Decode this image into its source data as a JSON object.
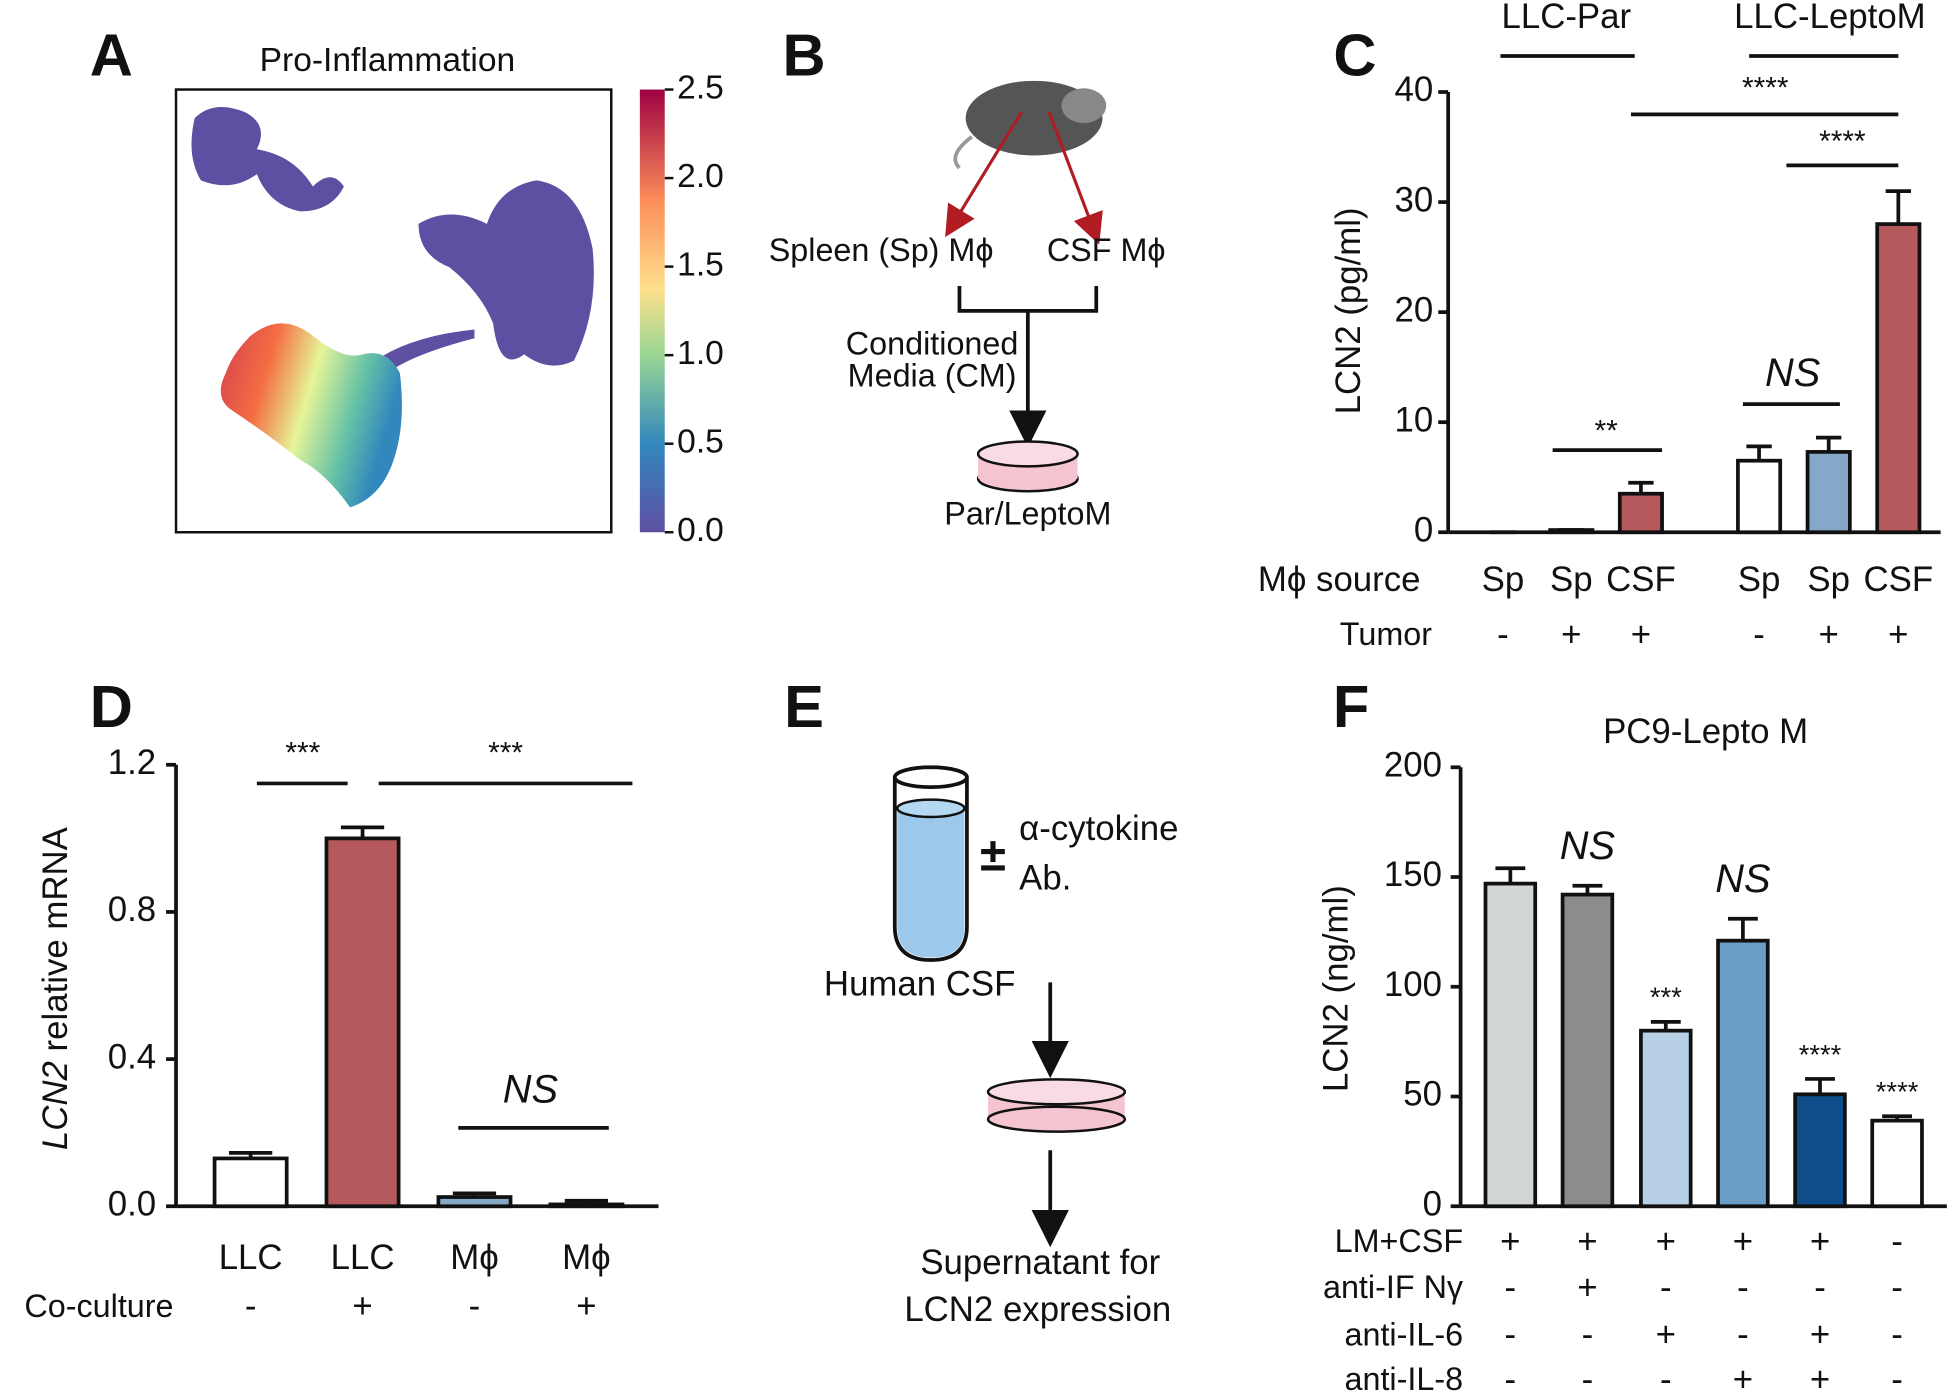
{
  "panel_labels": [
    "A",
    "B",
    "C",
    "D",
    "E",
    "F"
  ],
  "panel_a": {
    "title": "Pro-Inflammation",
    "colorbar_lim": [
      0,
      2.5
    ],
    "colorbar_ticks": [
      {
        "value": 0,
        "label": "0.0"
      },
      0.5,
      {
        "value": 1,
        "label": "1.0"
      },
      1.5,
      {
        "value": 2,
        "label": "2.0"
      },
      2.5
    ]
  },
  "panel_b": {
    "spleen": "Spleen (Sp) Mϕ",
    "csf": "CSF Mϕ",
    "cm": [
      "Conditioned",
      "Media (CM)"
    ],
    "target": "Par/LeptoM"
  },
  "panel_e": {
    "sign": "±",
    "antibody": [
      "α-cytokine",
      "Ab."
    ],
    "source": "Human CSF",
    "output": [
      "Supernatant for",
      "LCN2 expression"
    ]
  },
  "chart_data": [
    {
      "type": "bar",
      "ylabel": [
        "LCN2 (pg/ml)"
      ],
      "groups": [
        "LLC-Par",
        "LLC-LeptoM"
      ],
      "category_label": "Mϕ source",
      "categories": [
        "Sp",
        "Sp",
        "CSF",
        "Sp",
        "Sp",
        "CSF"
      ],
      "rows": [
        {
          "label": "Tumor",
          "values": [
            "-",
            "+",
            "+",
            "-",
            "+",
            "+"
          ]
        }
      ],
      "values": [
        0,
        0.2,
        3.5,
        6.5,
        7.3,
        28
      ],
      "errors": [
        0,
        0,
        1,
        1.3,
        1.3,
        3
      ],
      "colors": [
        "#ffffff",
        "#86a8c8",
        "#b5595c",
        "#ffffff",
        "#86a8c8",
        "#b5595c"
      ],
      "ylim": [
        0,
        40
      ],
      "yticks": [
        0,
        10,
        20,
        30,
        40
      ],
      "annotations": [
        "****",
        "****",
        "**",
        "NS"
      ]
    },
    {
      "type": "bar",
      "ylabel": [
        "LCN2",
        " relative mRNA"
      ],
      "categories": [
        "LLC",
        "LLC",
        "Mϕ",
        "Mϕ"
      ],
      "rows": [
        {
          "label": "Co-culture",
          "values": [
            "-",
            "+",
            "-",
            "+"
          ]
        }
      ],
      "values": [
        0.13,
        1.0,
        0.025,
        0.005
      ],
      "errors": [
        0.015,
        0.03,
        0.01,
        0.01
      ],
      "colors": [
        "#ffffff",
        "#b5595c",
        "#86a8c8",
        "#ffffff"
      ],
      "ylim": [
        0,
        1.2
      ],
      "yticks": [
        {
          "value": 0,
          "label": "0.0"
        },
        0.4,
        0.8,
        1.2
      ],
      "annotations": [
        "***",
        "***",
        "NS"
      ]
    },
    {
      "type": "bar",
      "title": "PC9-Lepto M",
      "ylabel": [
        "LCN2 (ng/ml)"
      ],
      "rows": [
        {
          "label": "LM+CSF",
          "values": [
            "+",
            "+",
            "+",
            "+",
            "+",
            "-"
          ]
        },
        {
          "label": "anti-IF Nγ",
          "values": [
            "-",
            "+",
            "-",
            "-",
            "-",
            "-"
          ]
        },
        {
          "label": "anti-IL-6",
          "values": [
            "-",
            "-",
            "+",
            "-",
            "+",
            "-"
          ]
        },
        {
          "label": "anti-IL-8",
          "values": [
            "-",
            "-",
            "-",
            "+",
            "+",
            "-"
          ]
        }
      ],
      "values": [
        147,
        142,
        80,
        121,
        51,
        39
      ],
      "errors": [
        7,
        4,
        4,
        10,
        7,
        2
      ],
      "colors": [
        "#d3d6d6",
        "#8c8c8c",
        "#b8d0e6",
        "#6a9ec7",
        "#0f4e8a",
        "#ffffff"
      ],
      "ylim": [
        0,
        200
      ],
      "yticks": [
        0,
        50,
        100,
        150,
        200
      ],
      "annotations": [
        "NS",
        "***",
        "NS",
        "****",
        "****"
      ]
    }
  ]
}
